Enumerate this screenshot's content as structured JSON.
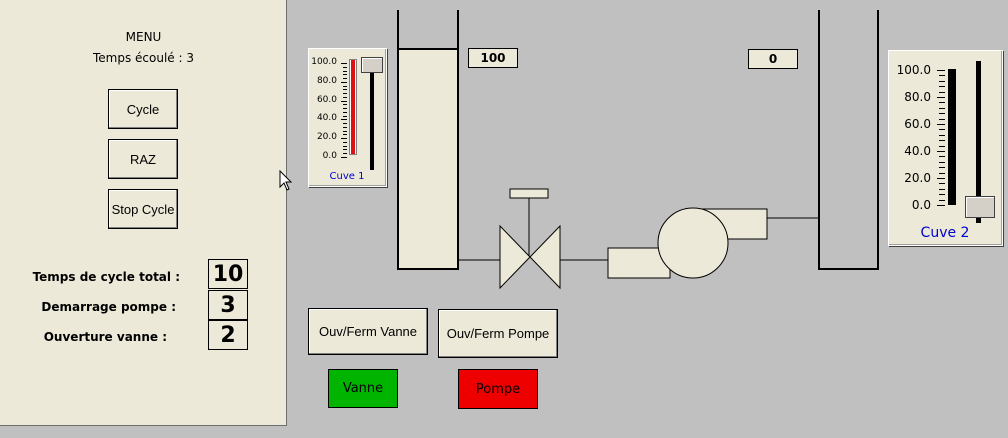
{
  "menu": {
    "title": "MENU",
    "elapsed_label": "Temps écoulé : 3",
    "buttons": {
      "cycle": "Cycle",
      "raz": "RAZ",
      "stop_cycle": "Stop Cycle"
    },
    "params": [
      {
        "label": "Temps de cycle total :",
        "value": "10"
      },
      {
        "label": "Demarrage pompe :",
        "value": "3"
      },
      {
        "label": "Ouverture vanne :",
        "value": "2"
      }
    ]
  },
  "process": {
    "tank1_readout": "100",
    "tank2_readout": "0",
    "valve_button": "Ouv/Ferm Vanne",
    "pump_button": "Ouv/Ferm Pompe",
    "valve_status": "Vanne",
    "pump_status": "Pompe"
  },
  "gauge1": {
    "label": "Cuve 1",
    "ticks": [
      "100.0",
      "80.0",
      "60.0",
      "40.0",
      "20.0",
      "0.0"
    ],
    "level_percent": 100,
    "slider_percent": 100
  },
  "gauge2": {
    "label": "Cuve 2",
    "ticks": [
      "100.0",
      "80.0",
      "60.0",
      "40.0",
      "20.0",
      "0.0"
    ],
    "level_percent": 0,
    "slider_percent": 0
  },
  "colors": {
    "valve_status": "#00b400",
    "pump_status": "#ee0000",
    "gauge1_fill": "#dd1111",
    "gauge_label": "#0000cc"
  }
}
